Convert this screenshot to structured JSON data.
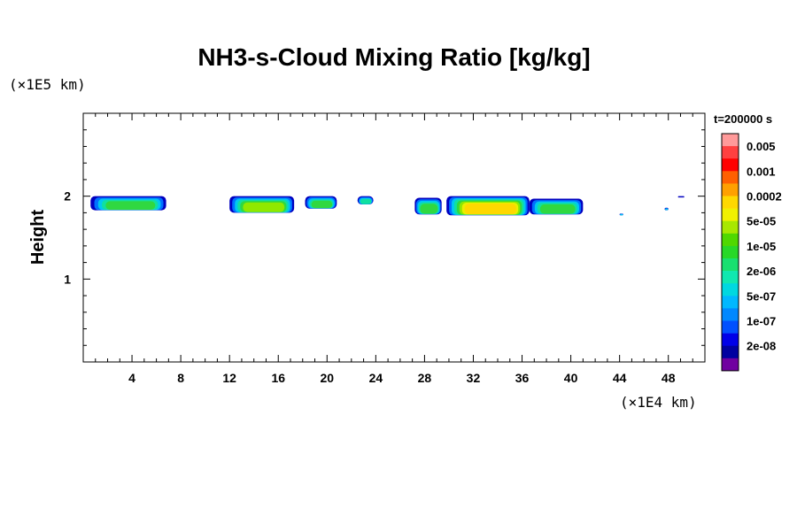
{
  "chart_data": {
    "type": "heatmap",
    "title": "NH3-s-Cloud Mixing Ratio [kg/kg]",
    "ylabel": "Height",
    "x_scale_note": "(×1E4 km)",
    "y_scale_note": "(×1E5 km)",
    "xlim": [
      0,
      51
    ],
    "ylim": [
      0,
      3
    ],
    "x_ticks": [
      "4",
      "8",
      "12",
      "16",
      "20",
      "24",
      "28",
      "32",
      "36",
      "40",
      "44",
      "48"
    ],
    "x_tick_values": [
      4,
      8,
      12,
      16,
      20,
      24,
      28,
      32,
      36,
      40,
      44,
      48
    ],
    "y_ticks": [
      "1",
      "2"
    ],
    "y_tick_values": [
      1,
      2
    ],
    "time_label": "t=200000 s",
    "colorbar": {
      "labels": [
        "0.005",
        "0.001",
        "0.0002",
        "5e-05",
        "1e-05",
        "2e-06",
        "5e-07",
        "1e-07",
        "2e-08"
      ],
      "colors": [
        "#ff9a9a",
        "#ff4040",
        "#ff0000",
        "#ff6000",
        "#ffa000",
        "#ffd800",
        "#f0f000",
        "#a8e800",
        "#50d800",
        "#28d828",
        "#18e070",
        "#10e8b0",
        "#00d8e0",
        "#00b8ff",
        "#0088ff",
        "#0050ff",
        "#0000e8",
        "#0000a0",
        "#7000a0"
      ]
    },
    "cloud_patches": [
      {
        "x_start": 0.6,
        "x_end": 6.8,
        "y_min": 1.83,
        "y_max": 2.0,
        "peak": "1e-05"
      },
      {
        "x_start": 12.0,
        "x_end": 17.3,
        "y_min": 1.8,
        "y_max": 2.0,
        "peak": "5e-05"
      },
      {
        "x_start": 18.2,
        "x_end": 20.8,
        "y_min": 1.85,
        "y_max": 2.0,
        "peak": "1e-05"
      },
      {
        "x_start": 22.5,
        "x_end": 23.8,
        "y_min": 1.9,
        "y_max": 2.0,
        "peak": "2e-06"
      },
      {
        "x_start": 27.2,
        "x_end": 29.4,
        "y_min": 1.78,
        "y_max": 1.98,
        "peak": "1e-05"
      },
      {
        "x_start": 29.8,
        "x_end": 36.6,
        "y_min": 1.77,
        "y_max": 2.0,
        "peak": "0.0002"
      },
      {
        "x_start": 36.6,
        "x_end": 41.0,
        "y_min": 1.78,
        "y_max": 1.97,
        "peak": "1e-05"
      },
      {
        "x_start": 44.0,
        "x_end": 44.3,
        "y_min": 1.77,
        "y_max": 1.79,
        "peak": "5e-07"
      },
      {
        "x_start": 47.7,
        "x_end": 48.0,
        "y_min": 1.83,
        "y_max": 1.86,
        "peak": "5e-07"
      },
      {
        "x_start": 48.8,
        "x_end": 49.3,
        "y_min": 1.99,
        "y_max": 2.0,
        "peak": "2e-08"
      }
    ]
  }
}
